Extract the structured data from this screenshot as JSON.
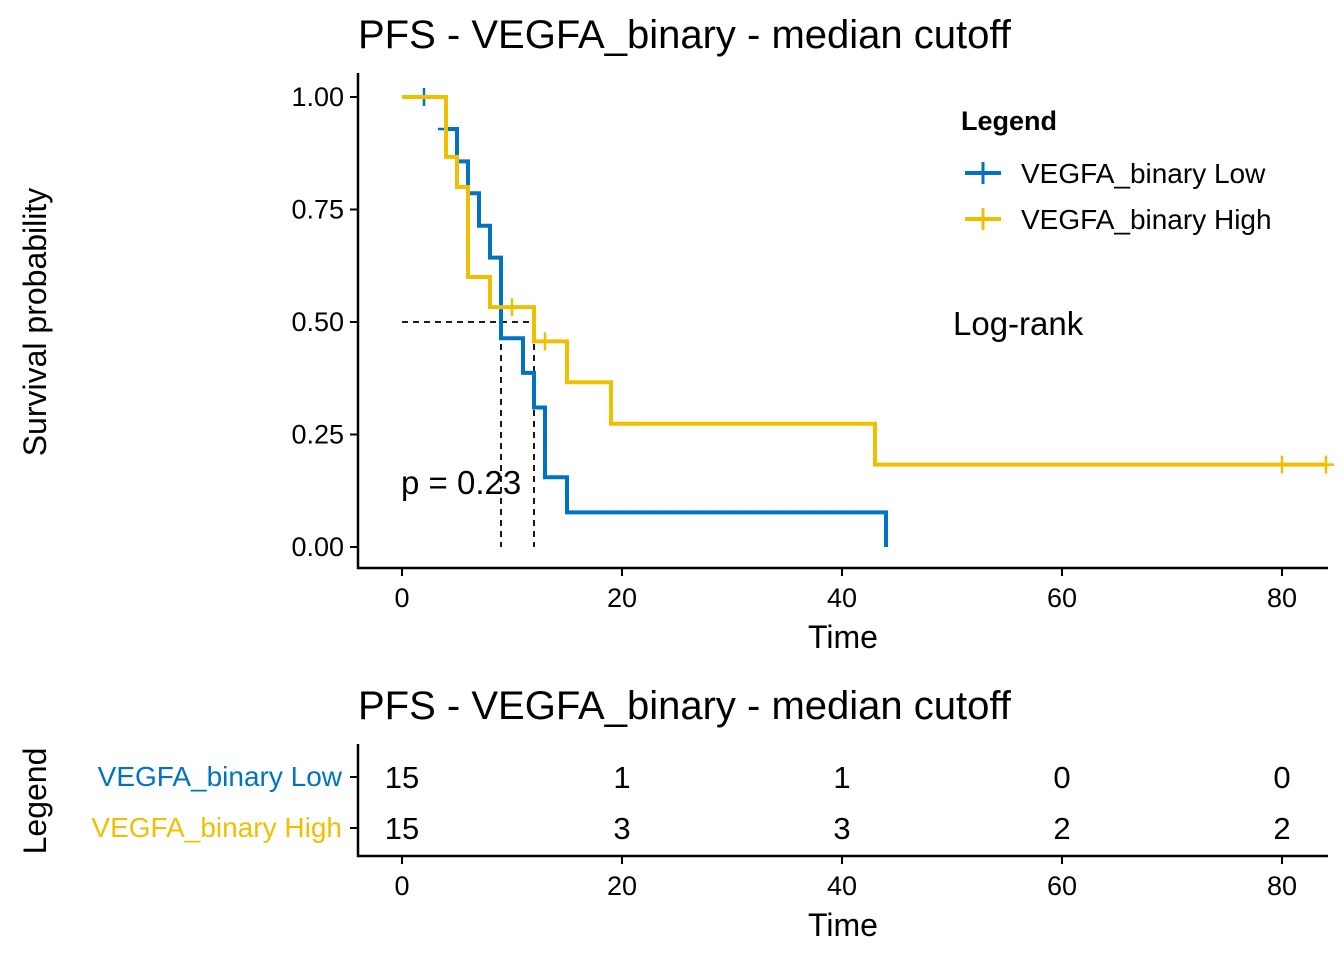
{
  "chart_data": [
    {
      "type": "line",
      "subtype": "kaplan-meier",
      "title": "PFS - VEGFA_binary - median cutoff",
      "xlabel": "Time",
      "ylabel": "Survival probability",
      "xlim": [
        -4,
        84
      ],
      "ylim": [
        -0.05,
        1.05
      ],
      "xticks": [
        0,
        20,
        40,
        60,
        80
      ],
      "yticks": [
        0,
        0.25,
        0.5,
        0.75,
        1.0
      ],
      "ytick_labels": [
        "0.00",
        "0.25",
        "0.50",
        "0.75",
        "1.00"
      ],
      "grid": false,
      "legend": {
        "title": "Legend",
        "position": "top-right",
        "entries": [
          "VEGFA_binary Low",
          "VEGFA_binary High"
        ]
      },
      "annotations": {
        "test_label": "Log-rank",
        "pvalue_label": "p = 0.23"
      },
      "median_lines": {
        "y": 0.5,
        "x": [
          9,
          12
        ]
      },
      "series": [
        {
          "name": "VEGFA_binary Low",
          "color": "#0073C2",
          "steps": [
            [
              0,
              1.0
            ],
            [
              4,
              0.929
            ],
            [
              5,
              0.857
            ],
            [
              6,
              0.786
            ],
            [
              7,
              0.714
            ],
            [
              8,
              0.643
            ],
            [
              9,
              0.5
            ],
            [
              9,
              0.464
            ],
            [
              11,
              0.387
            ],
            [
              12,
              0.31
            ],
            [
              13,
              0.155
            ],
            [
              15,
              0.077
            ],
            [
              44,
              0.077
            ],
            [
              44,
              0.0
            ]
          ],
          "censored": [
            [
              2,
              1.0
            ],
            [
              4,
              0.929
            ]
          ]
        },
        {
          "name": "VEGFA_binary High",
          "color": "#EFC000",
          "steps": [
            [
              0,
              1.0
            ],
            [
              4,
              0.867
            ],
            [
              5,
              0.8
            ],
            [
              6,
              0.6
            ],
            [
              8,
              0.533
            ],
            [
              12,
              0.457
            ],
            [
              15,
              0.366
            ],
            [
              19,
              0.274
            ],
            [
              43,
              0.183
            ],
            [
              84,
              0.183
            ]
          ],
          "censored": [
            [
              10,
              0.533
            ],
            [
              13,
              0.457
            ],
            [
              80,
              0.183
            ],
            [
              84,
              0.183
            ]
          ]
        }
      ]
    },
    {
      "type": "table",
      "subtype": "risk-table",
      "title": "PFS - VEGFA_binary - median cutoff",
      "xlabel": "Time",
      "ylabel": "Legend",
      "xticks": [
        0,
        20,
        40,
        60,
        80
      ],
      "rows": [
        {
          "name": "VEGFA_binary Low",
          "color": "#0073C2",
          "values": [
            15,
            1,
            1,
            0,
            0
          ]
        },
        {
          "name": "VEGFA_binary High",
          "color": "#EFC000",
          "values": [
            15,
            3,
            3,
            2,
            2
          ]
        }
      ]
    }
  ]
}
